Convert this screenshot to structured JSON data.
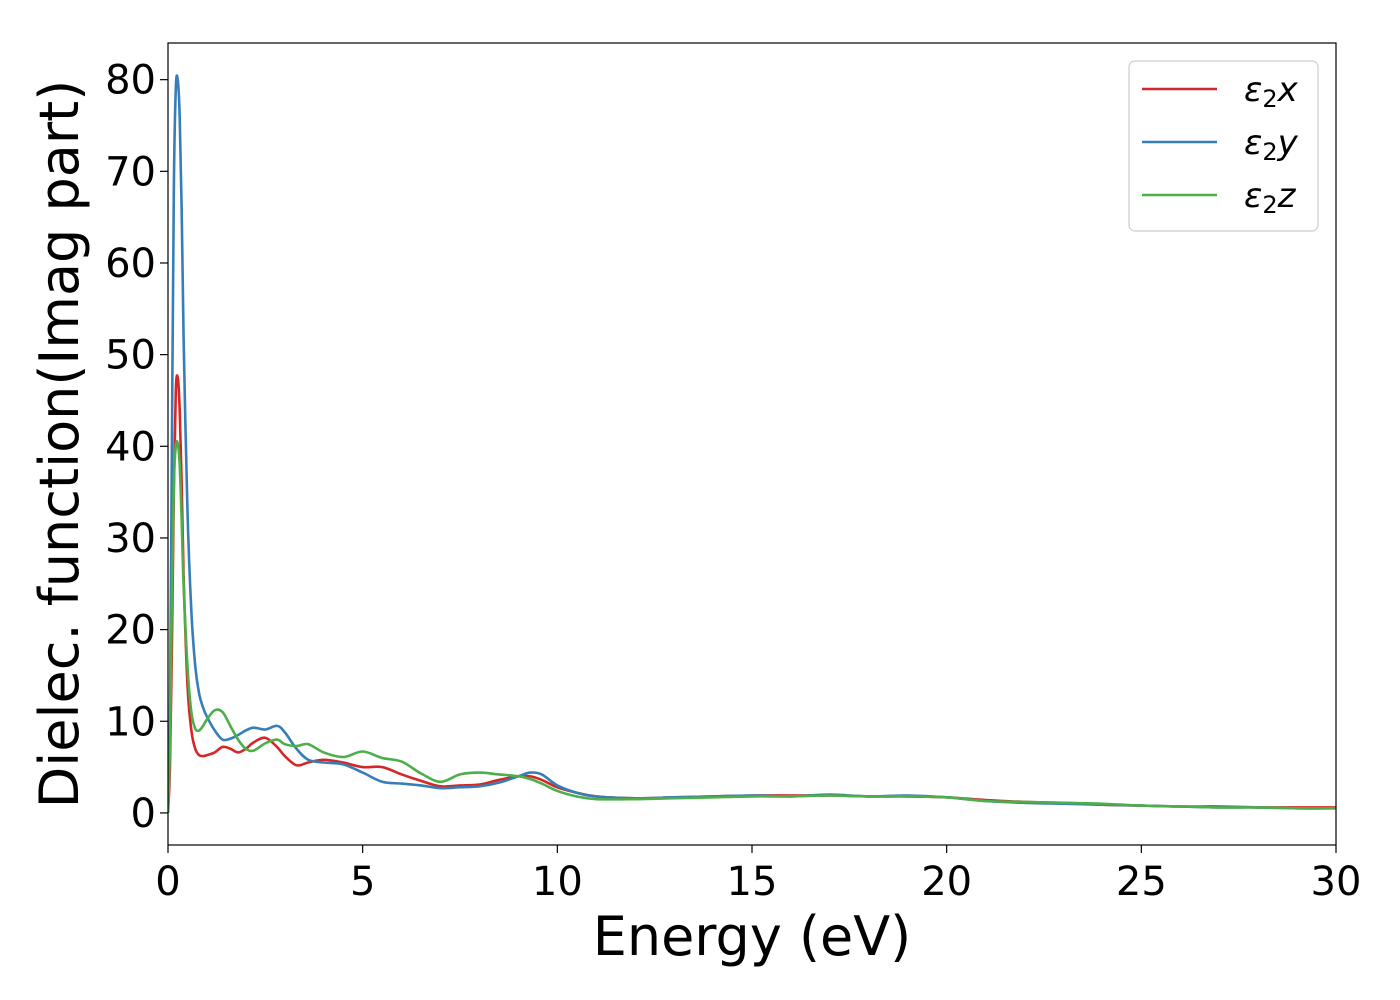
{
  "chart_data": {
    "type": "line",
    "xlabel": "Energy (eV)",
    "ylabel": "Dielec. function(Imag part)",
    "xlim": [
      0,
      30
    ],
    "ylim": [
      -3.5,
      84
    ],
    "xticks": [
      0,
      5,
      10,
      15,
      20,
      25,
      30
    ],
    "yticks": [
      0,
      10,
      20,
      30,
      40,
      50,
      60,
      70,
      80
    ],
    "grid": false,
    "legend_position": "top-right",
    "series": [
      {
        "name": "ε₂x",
        "legend": {
          "symbol": "ε",
          "subscript": "2",
          "axis": "x"
        },
        "color": "#d62728",
        "x": [
          0,
          0.05,
          0.1,
          0.15,
          0.2,
          0.25,
          0.3,
          0.35,
          0.4,
          0.5,
          0.6,
          0.7,
          0.8,
          0.9,
          1.0,
          1.2,
          1.4,
          1.6,
          1.8,
          2.0,
          2.2,
          2.5,
          2.8,
          3.0,
          3.3,
          3.6,
          4.0,
          4.5,
          5.0,
          5.5,
          6.0,
          6.5,
          7.0,
          7.5,
          8.0,
          8.5,
          9.0,
          9.3,
          9.6,
          10.0,
          10.5,
          11.0,
          12.0,
          13.0,
          14.0,
          15.0,
          16.0,
          17.0,
          18.0,
          19.0,
          20.0,
          21.0,
          22.0,
          23.0,
          24.0,
          25.0,
          26.0,
          27.0,
          28.0,
          29.0,
          30.0
        ],
        "y": [
          0,
          5,
          18,
          35,
          46,
          47.5,
          44,
          36,
          26,
          14,
          9,
          7,
          6.3,
          6.2,
          6.3,
          6.6,
          7.2,
          7.0,
          6.6,
          7.0,
          7.7,
          8.2,
          7.2,
          6.2,
          5.2,
          5.5,
          5.8,
          5.5,
          5.0,
          5.0,
          4.2,
          3.5,
          2.9,
          3.0,
          3.1,
          3.6,
          4.0,
          4.0,
          3.6,
          2.8,
          2.2,
          1.8,
          1.6,
          1.7,
          1.8,
          1.9,
          1.9,
          1.9,
          1.8,
          1.8,
          1.7,
          1.4,
          1.2,
          1.1,
          0.9,
          0.8,
          0.7,
          0.7,
          0.6,
          0.6,
          0.6
        ]
      },
      {
        "name": "ε₂y",
        "legend": {
          "symbol": "ε",
          "subscript": "2",
          "axis": "y"
        },
        "color": "#377eb8",
        "x": [
          0,
          0.05,
          0.1,
          0.15,
          0.2,
          0.25,
          0.3,
          0.35,
          0.4,
          0.5,
          0.6,
          0.7,
          0.8,
          0.9,
          1.0,
          1.2,
          1.4,
          1.6,
          1.8,
          2.0,
          2.2,
          2.5,
          2.8,
          3.0,
          3.3,
          3.6,
          4.0,
          4.5,
          5.0,
          5.5,
          6.0,
          6.5,
          7.0,
          7.5,
          8.0,
          8.5,
          9.0,
          9.3,
          9.6,
          10.0,
          10.5,
          11.0,
          12.0,
          13.0,
          14.0,
          15.0,
          16.0,
          17.0,
          18.0,
          19.0,
          20.0,
          21.0,
          22.0,
          23.0,
          24.0,
          25.0,
          26.0,
          27.0,
          28.0,
          29.0,
          30.0
        ],
        "y": [
          0,
          10,
          40,
          68,
          79,
          80,
          76,
          66,
          52,
          33,
          22,
          16,
          13,
          11.5,
          10.5,
          9.0,
          8.0,
          8.1,
          8.5,
          9.0,
          9.3,
          9.1,
          9.5,
          8.8,
          7.0,
          5.8,
          5.5,
          5.3,
          4.4,
          3.4,
          3.2,
          3.0,
          2.7,
          2.8,
          2.9,
          3.3,
          4.0,
          4.4,
          4.2,
          3.0,
          2.2,
          1.8,
          1.6,
          1.7,
          1.8,
          1.9,
          1.8,
          2.0,
          1.8,
          1.9,
          1.7,
          1.3,
          1.1,
          1.0,
          0.9,
          0.8,
          0.7,
          0.6,
          0.6,
          0.5,
          0.5
        ]
      },
      {
        "name": "ε₂z",
        "legend": {
          "symbol": "ε",
          "subscript": "2",
          "axis": "z"
        },
        "color": "#4daf4a",
        "x": [
          0,
          0.05,
          0.1,
          0.15,
          0.2,
          0.25,
          0.3,
          0.35,
          0.4,
          0.5,
          0.6,
          0.7,
          0.8,
          0.9,
          1.0,
          1.2,
          1.4,
          1.6,
          1.8,
          2.0,
          2.2,
          2.5,
          2.8,
          3.0,
          3.3,
          3.6,
          4.0,
          4.5,
          5.0,
          5.5,
          6.0,
          6.5,
          7.0,
          7.5,
          8.0,
          8.5,
          9.0,
          9.3,
          9.6,
          10.0,
          10.5,
          11.0,
          12.0,
          13.0,
          14.0,
          15.0,
          16.0,
          17.0,
          18.0,
          19.0,
          20.0,
          21.0,
          22.0,
          23.0,
          24.0,
          25.0,
          26.0,
          27.0,
          28.0,
          29.0,
          30.0
        ],
        "y": [
          0,
          8,
          24,
          36,
          40,
          40.3,
          38,
          32,
          25,
          16,
          11,
          9.2,
          9.0,
          9.5,
          10.2,
          11.2,
          11.0,
          9.5,
          8.0,
          7.0,
          6.8,
          7.6,
          8.0,
          7.5,
          7.3,
          7.5,
          6.6,
          6.1,
          6.7,
          6.0,
          5.6,
          4.3,
          3.4,
          4.2,
          4.4,
          4.2,
          4.0,
          3.7,
          3.2,
          2.4,
          1.8,
          1.5,
          1.5,
          1.6,
          1.7,
          1.8,
          1.8,
          1.9,
          1.8,
          1.8,
          1.7,
          1.3,
          1.2,
          1.1,
          1.0,
          0.8,
          0.7,
          0.6,
          0.6,
          0.5,
          0.5
        ]
      }
    ]
  }
}
